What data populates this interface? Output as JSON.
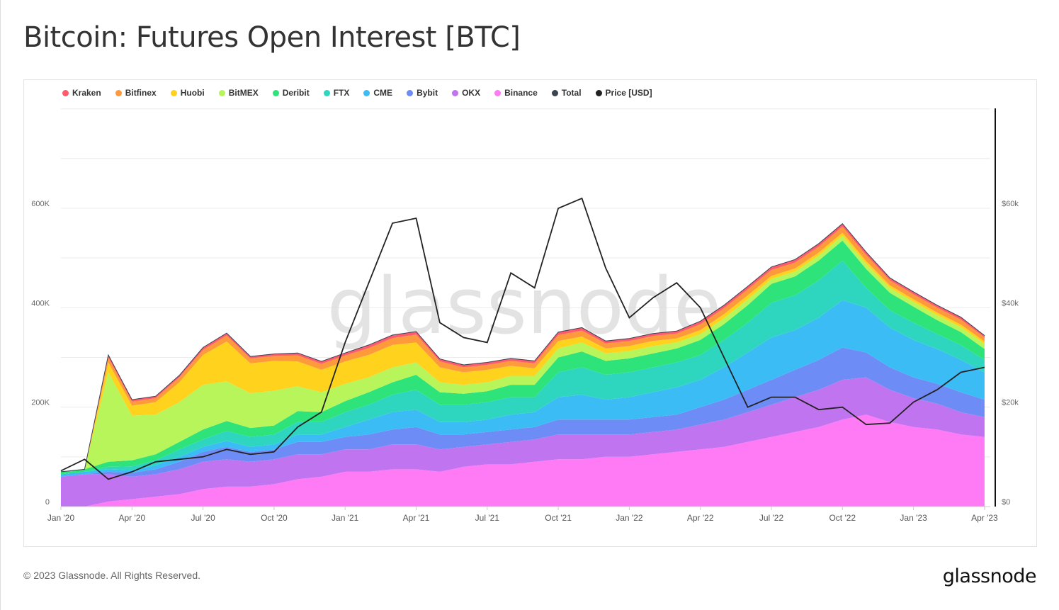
{
  "title": "Bitcoin: Futures Open Interest [BTC]",
  "footer": "© 2023 Glassnode. All Rights Reserved.",
  "logo": "glassnode",
  "watermark": "glassnode",
  "chart_data": {
    "type": "area",
    "stacked": true,
    "title": "Bitcoin: Futures Open Interest [BTC]",
    "x_unit": "month",
    "x": [
      "2020-01",
      "2020-02",
      "2020-03",
      "2020-04",
      "2020-05",
      "2020-06",
      "2020-07",
      "2020-08",
      "2020-09",
      "2020-10",
      "2020-11",
      "2020-12",
      "2021-01",
      "2021-02",
      "2021-03",
      "2021-04",
      "2021-05",
      "2021-06",
      "2021-07",
      "2021-08",
      "2021-09",
      "2021-10",
      "2021-11",
      "2021-12",
      "2022-01",
      "2022-02",
      "2022-03",
      "2022-04",
      "2022-05",
      "2022-06",
      "2022-07",
      "2022-08",
      "2022-09",
      "2022-10",
      "2022-11",
      "2022-12",
      "2023-01",
      "2023-02",
      "2023-03",
      "2023-04"
    ],
    "x_ticks": [
      "Jan '20",
      "Apr '20",
      "Jul '20",
      "Oct '20",
      "Jan '21",
      "Apr '21",
      "Jul '21",
      "Oct '21",
      "Jan '22",
      "Apr '22",
      "Jul '22",
      "Oct '22",
      "Jan '23",
      "Apr '23"
    ],
    "y_left": {
      "label": "Open Interest [BTC]",
      "range": [
        0,
        800000
      ],
      "ticks": [
        "0",
        "200K",
        "400K",
        "600K"
      ],
      "tick_values": [
        0,
        200000,
        400000,
        600000
      ]
    },
    "y_right": {
      "label": "Price [USD]",
      "range": [
        0,
        80000
      ],
      "ticks": [
        "$0",
        "$20k",
        "$40k",
        "$60k"
      ],
      "tick_values": [
        0,
        20000,
        40000,
        60000
      ]
    },
    "grid": true,
    "legend_position": "top-left",
    "legend": [
      "Kraken",
      "Bitfinex",
      "Huobi",
      "BitMEX",
      "Deribit",
      "FTX",
      "CME",
      "Bybit",
      "OKX",
      "Binance",
      "Total",
      "Price [USD]"
    ],
    "series": [
      {
        "name": "Binance",
        "color": "#ff7bf5",
        "values": [
          0,
          0,
          10,
          15,
          20,
          25,
          35,
          40,
          40,
          45,
          55,
          60,
          70,
          70,
          75,
          75,
          70,
          80,
          85,
          85,
          90,
          95,
          95,
          100,
          100,
          105,
          110,
          115,
          120,
          130,
          140,
          150,
          160,
          175,
          185,
          170,
          160,
          155,
          145,
          140
        ]
      },
      {
        "name": "OKX",
        "color": "#c074f0",
        "values": [
          60,
          65,
          55,
          45,
          45,
          50,
          55,
          55,
          50,
          50,
          50,
          45,
          45,
          45,
          50,
          50,
          45,
          40,
          40,
          45,
          45,
          50,
          50,
          45,
          45,
          45,
          45,
          50,
          55,
          60,
          65,
          70,
          75,
          80,
          75,
          65,
          58,
          52,
          45,
          40
        ]
      },
      {
        "name": "Bybit",
        "color": "#6e8cf5",
        "values": [
          0,
          0,
          5,
          8,
          10,
          15,
          20,
          25,
          20,
          20,
          25,
          25,
          25,
          30,
          30,
          35,
          30,
          25,
          25,
          25,
          25,
          30,
          30,
          30,
          30,
          30,
          30,
          35,
          40,
          45,
          50,
          55,
          60,
          65,
          50,
          45,
          42,
          40,
          40,
          35
        ]
      },
      {
        "name": "CME",
        "color": "#3cbcf5",
        "values": [
          5,
          5,
          5,
          5,
          8,
          10,
          10,
          12,
          10,
          10,
          15,
          15,
          20,
          30,
          35,
          35,
          25,
          25,
          25,
          30,
          30,
          45,
          50,
          40,
          45,
          50,
          55,
          55,
          65,
          75,
          85,
          80,
          85,
          95,
          90,
          80,
          75,
          70,
          65,
          55
        ]
      },
      {
        "name": "FTX",
        "color": "#2ed6c0",
        "values": [
          0,
          0,
          5,
          8,
          10,
          15,
          15,
          20,
          20,
          20,
          25,
          25,
          30,
          30,
          35,
          40,
          35,
          35,
          35,
          35,
          30,
          50,
          55,
          50,
          50,
          50,
          50,
          50,
          55,
          60,
          70,
          70,
          75,
          80,
          40,
          35,
          35,
          30,
          30,
          25
        ]
      },
      {
        "name": "Deribit",
        "color": "#2ee37a",
        "values": [
          5,
          5,
          10,
          12,
          12,
          15,
          20,
          20,
          18,
          18,
          22,
          20,
          22,
          25,
          25,
          30,
          25,
          22,
          22,
          25,
          25,
          30,
          32,
          28,
          28,
          28,
          28,
          30,
          32,
          35,
          38,
          38,
          40,
          40,
          38,
          35,
          32,
          28,
          26,
          22
        ]
      },
      {
        "name": "BitMEX",
        "color": "#b8f55a",
        "values": [
          0,
          0,
          180,
          90,
          80,
          80,
          90,
          80,
          70,
          70,
          50,
          40,
          35,
          30,
          30,
          25,
          20,
          18,
          18,
          18,
          18,
          18,
          18,
          15,
          15,
          15,
          12,
          12,
          12,
          12,
          10,
          10,
          10,
          10,
          10,
          10,
          10,
          10,
          10,
          10
        ]
      },
      {
        "name": "Huobi",
        "color": "#ffd21e",
        "values": [
          0,
          0,
          20,
          20,
          25,
          40,
          60,
          80,
          60,
          60,
          50,
          45,
          45,
          45,
          45,
          40,
          30,
          25,
          25,
          20,
          15,
          15,
          12,
          10,
          10,
          10,
          8,
          8,
          8,
          8,
          6,
          6,
          6,
          6,
          6,
          5,
          5,
          5,
          5,
          5
        ]
      },
      {
        "name": "Bitfinex",
        "color": "#ff9a3c",
        "values": [
          0,
          0,
          10,
          8,
          8,
          10,
          10,
          12,
          10,
          10,
          12,
          12,
          12,
          14,
          14,
          16,
          12,
          10,
          10,
          10,
          10,
          12,
          12,
          10,
          10,
          10,
          10,
          12,
          12,
          12,
          12,
          12,
          12,
          12,
          12,
          10,
          10,
          10,
          10,
          8
        ]
      },
      {
        "name": "Kraken",
        "color": "#ff5a6e",
        "values": [
          0,
          0,
          5,
          4,
          4,
          4,
          5,
          5,
          4,
          4,
          5,
          5,
          5,
          6,
          6,
          6,
          5,
          5,
          5,
          5,
          5,
          6,
          6,
          5,
          5,
          5,
          5,
          6,
          6,
          6,
          6,
          6,
          6,
          6,
          6,
          5,
          5,
          5,
          5,
          4
        ]
      }
    ],
    "values_unit_note": "series values in thousands of BTC",
    "total": {
      "name": "Total",
      "color": "#3a4450"
    },
    "price": {
      "name": "Price [USD]",
      "color": "#222222",
      "values_k_usd": [
        7.2,
        9.5,
        5.5,
        7,
        9,
        9.5,
        10,
        11.5,
        10.5,
        11,
        16,
        19,
        33,
        45,
        57,
        58,
        37,
        34,
        33,
        47,
        44,
        60,
        62,
        48,
        38,
        42,
        45,
        40,
        30,
        20,
        22,
        22,
        19.5,
        20,
        16.5,
        16.8,
        21,
        23.5,
        27,
        28
      ]
    }
  }
}
